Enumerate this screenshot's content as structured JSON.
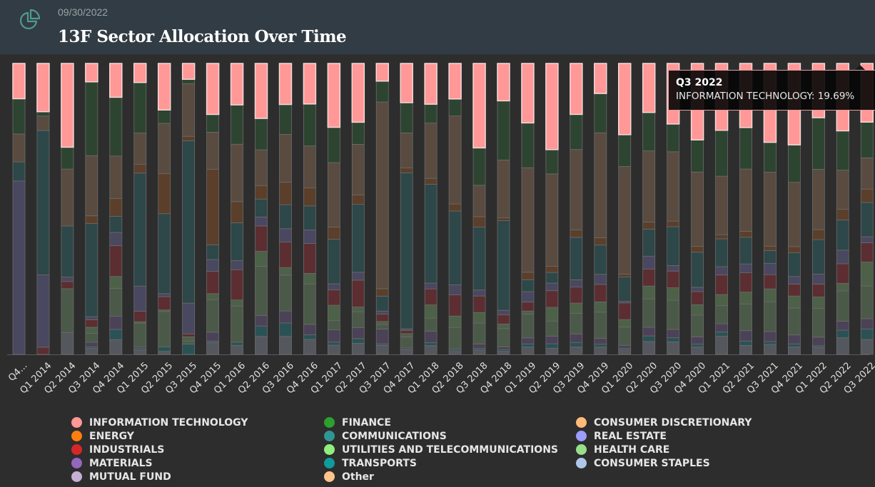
{
  "header": {
    "icon": "pie-chart-icon",
    "date": "09/30/2022",
    "title": "13F Sector Allocation Over Time"
  },
  "tooltip": {
    "title": "Q3 2022",
    "body": "INFORMATION TECHNOLOGY: 19.69%"
  },
  "legend": [
    {
      "label": "INFORMATION TECHNOLOGY",
      "color": "#ff9896"
    },
    {
      "label": "ENERGY",
      "color": "#ff7f0e"
    },
    {
      "label": "INDUSTRIALS",
      "color": "#d62728"
    },
    {
      "label": "MATERIALS",
      "color": "#9467bd"
    },
    {
      "label": "MUTUAL FUND",
      "color": "#c5b0d5"
    },
    {
      "label": "FINANCE",
      "color": "#2ca02c"
    },
    {
      "label": "COMMUNICATIONS",
      "color": "#2f9694"
    },
    {
      "label": "UTILITIES AND TELECOMMUNICATIONS",
      "color": "#90ee7e"
    },
    {
      "label": "TRANSPORTS",
      "color": "#0e9c9c"
    },
    {
      "label": "Other",
      "color": "#ffc48a"
    },
    {
      "label": "CONSUMER DISCRETIONARY",
      "color": "#ffbb78"
    },
    {
      "label": "REAL ESTATE",
      "color": "#9c9cff"
    },
    {
      "label": "HEALTH CARE",
      "color": "#98df8a"
    },
    {
      "label": "CONSUMER STAPLES",
      "color": "#aec7e8"
    }
  ],
  "chart_data": {
    "type": "bar",
    "stacked": "percent",
    "title": "13F Sector Allocation Over Time",
    "xlabel": "",
    "ylabel": "",
    "ylim": [
      0,
      100
    ],
    "highlighted_series": "INFORMATION TECHNOLOGY",
    "categories": [
      "Q4...",
      "Q1 2014",
      "Q2 2014",
      "Q3 2014",
      "Q4 2014",
      "Q1 2015",
      "Q2 2015",
      "Q3 2015",
      "Q4 2015",
      "Q1 2016",
      "Q2 2016",
      "Q3 2016",
      "Q4 2016",
      "Q1 2017",
      "Q2 2017",
      "Q3 2017",
      "Q4 2017",
      "Q1 2018",
      "Q2 2018",
      "Q3 2018",
      "Q4 2018",
      "Q1 2019",
      "Q2 2019",
      "Q3 2019",
      "Q4 2019",
      "Q1 2020",
      "Q2 2020",
      "Q3 2020",
      "Q4 2020",
      "Q1 2021",
      "Q2 2021",
      "Q3 2021",
      "Q4 2021",
      "Q1 2022",
      "Q2 2022",
      "Q3 2022"
    ],
    "series": [
      {
        "name": "CONSUMER STAPLES",
        "dim": "#54585e",
        "values": [
          0,
          0,
          7.5,
          2,
          5,
          1.5,
          1,
          0,
          4,
          3,
          6,
          6,
          5,
          3,
          3.5,
          3,
          1.5,
          3,
          1,
          1.5,
          1,
          2.5,
          2,
          2.5,
          2.5,
          1.5,
          4.5,
          4.5,
          2.5,
          6.5,
          3,
          3.5,
          2.5,
          2.5,
          5.5,
          5
        ]
      },
      {
        "name": "TRANSPORTS",
        "dim": "#2a5255",
        "values": [
          0,
          0,
          0,
          0.5,
          3.5,
          0.5,
          1.5,
          3.5,
          0.5,
          1,
          3.5,
          4.5,
          1.5,
          1,
          1.5,
          0.5,
          0,
          1,
          0.5,
          0.5,
          0.5,
          1,
          1.5,
          1.5,
          1,
          0.5,
          2,
          1.5,
          1,
          1.5,
          1.5,
          1,
          1,
          0.5,
          2.5,
          3.5
        ]
      },
      {
        "name": "MATERIALS",
        "dim": "#4b4258",
        "values": [
          0,
          0,
          0,
          1.5,
          4.5,
          0.5,
          0,
          0,
          3,
          0,
          3.5,
          4,
          3.5,
          4,
          3.5,
          5,
          0.5,
          4,
          0.5,
          1.5,
          1,
          2,
          2.5,
          3,
          2,
          1,
          3,
          3,
          2.5,
          3,
          3.5,
          3.5,
          3,
          3,
          3,
          3.5
        ]
      },
      {
        "name": "UTILITIES AND TELECOMMUNICATIONS",
        "dim": "#4b5a48",
        "values": [
          0,
          0,
          15,
          3,
          9.5,
          8,
          12,
          1,
          11,
          12,
          16.5,
          12,
          13.5,
          3,
          5,
          1.5,
          3.5,
          4.5,
          7.5,
          7,
          6,
          8,
          5,
          7,
          9,
          6,
          10,
          10.5,
          7.5,
          6.5,
          9,
          10.5,
          9,
          10,
          10,
          11
        ]
      },
      {
        "name": "HEALTH CARE",
        "dim": "#4c6147",
        "values": [
          0,
          0,
          0,
          2,
          4,
          0.5,
          0.5,
          1.5,
          2,
          2,
          5,
          2.5,
          3.5,
          5,
          1.5,
          1,
          1,
          4.5,
          4,
          3.5,
          1.5,
          1,
          4.5,
          3.5,
          3.5,
          2.5,
          4.5,
          4.5,
          3.5,
          4,
          4,
          4.5,
          4,
          4,
          2.5,
          8
        ]
      },
      {
        "name": "INDUSTRIALS",
        "dim": "#5c2e31",
        "values": [
          0,
          2.5,
          2.5,
          2.5,
          10.5,
          3.5,
          4.5,
          1,
          7.5,
          10,
          8.5,
          8.5,
          10,
          5,
          8.5,
          2.5,
          1,
          5.5,
          7.5,
          5.5,
          3,
          3,
          5.5,
          5.5,
          6,
          5.5,
          6,
          6,
          4.5,
          7,
          6.5,
          5,
          4,
          4.5,
          6.5,
          6.5
        ]
      },
      {
        "name": "REAL ESTATE",
        "dim": "#4a4760",
        "values": [
          59,
          25,
          1.5,
          1,
          4.5,
          8.5,
          1,
          10.5,
          4,
          3,
          3,
          4.5,
          4.5,
          2,
          2.5,
          1,
          0.5,
          2,
          3.5,
          2,
          1.5,
          3.5,
          2.5,
          2.5,
          3.5,
          0.5,
          4.5,
          2,
          1.5,
          3,
          3,
          4,
          2.5,
          3.5,
          4.5,
          2
        ]
      },
      {
        "name": "COMMUNICATIONS",
        "dim": "#2e4748",
        "values": [
          6.5,
          50,
          17.5,
          31,
          5.5,
          38,
          27,
          55.5,
          5,
          12.5,
          6,
          8,
          8,
          14.5,
          21.5,
          5,
          49,
          34,
          26,
          21,
          29.5,
          4,
          3.5,
          14.5,
          10,
          8,
          9.5,
          14,
          12,
          10,
          9,
          4.5,
          8,
          12,
          10,
          11.5
        ]
      },
      {
        "name": "ENERGY",
        "dim": "#5b3f2a",
        "values": [
          0,
          0,
          0,
          2.5,
          6,
          3,
          13.5,
          1.5,
          25.5,
          7,
          4.5,
          7.5,
          6,
          4,
          3,
          2.5,
          1.5,
          2,
          2.5,
          3.5,
          1,
          2.5,
          2,
          2.5,
          2.5,
          1,
          2.5,
          2,
          2,
          1.5,
          2,
          1.5,
          2,
          3.5,
          3.5,
          4.5
        ]
      },
      {
        "name": "CONSUMER DISCRETIONARY",
        "dim": "#5a4b40",
        "values": [
          9.5,
          5,
          19.5,
          20,
          14.5,
          10.5,
          17,
          18,
          12.5,
          19,
          12,
          16,
          14,
          21,
          16,
          62.5,
          11,
          19,
          31,
          10.5,
          19,
          35,
          30.5,
          27.5,
          36,
          35.5,
          25,
          25,
          25.5,
          21,
          21,
          26,
          21.5,
          21,
          13,
          10.5
        ]
      },
      {
        "name": "FINANCE",
        "dim": "#2d4431",
        "values": [
          12,
          1.5,
          7.5,
          24.5,
          20,
          17,
          4.5,
          1.5,
          6,
          13,
          10.5,
          10,
          14,
          11.5,
          7,
          7,
          9.5,
          6.5,
          6,
          12.5,
          19.5,
          15,
          8,
          12,
          13.5,
          10.5,
          13.5,
          10,
          11,
          16.5,
          14,
          10.5,
          12.5,
          18,
          13,
          12
        ]
      },
      {
        "name": "INFORMATION TECHNOLOGY",
        "dim": "#ff9896",
        "values": [
          12.0,
          16.7,
          28.7,
          6.1,
          11.5,
          6.4,
          15.7,
          5.4,
          17.2,
          13.7,
          18.4,
          13.7,
          13.5,
          20.8,
          18.6,
          5.9,
          12.3,
          14.0,
          12.5,
          28.2,
          12.3,
          19.9,
          28.4,
          17.4,
          10.3,
          23.5,
          17.2,
          21.8,
          26.2,
          24.0,
          21.6,
          27.7,
          27.2,
          18.9,
          22.3,
          19.69
        ]
      },
      {
        "name": "MUTUAL FUND",
        "dim": "#5e5a66",
        "values": [
          0,
          0,
          0,
          0,
          0,
          0,
          0,
          0,
          0,
          0,
          0,
          0,
          0,
          0,
          0,
          0,
          0,
          0,
          0,
          0,
          0,
          0,
          0,
          0,
          0,
          0,
          0,
          0,
          0,
          0,
          0,
          0,
          0,
          0,
          0,
          0
        ]
      },
      {
        "name": "Other",
        "dim": "#5e5648",
        "values": [
          0,
          0,
          0,
          0,
          0,
          0,
          0,
          0,
          0,
          0,
          0,
          0,
          0,
          0,
          0,
          0,
          0,
          0,
          0,
          0,
          0,
          0,
          0,
          0,
          0,
          0,
          0,
          0,
          0,
          0,
          0,
          0,
          0,
          0,
          0,
          0
        ]
      }
    ],
    "grid": false,
    "legend_position": "bottom"
  }
}
